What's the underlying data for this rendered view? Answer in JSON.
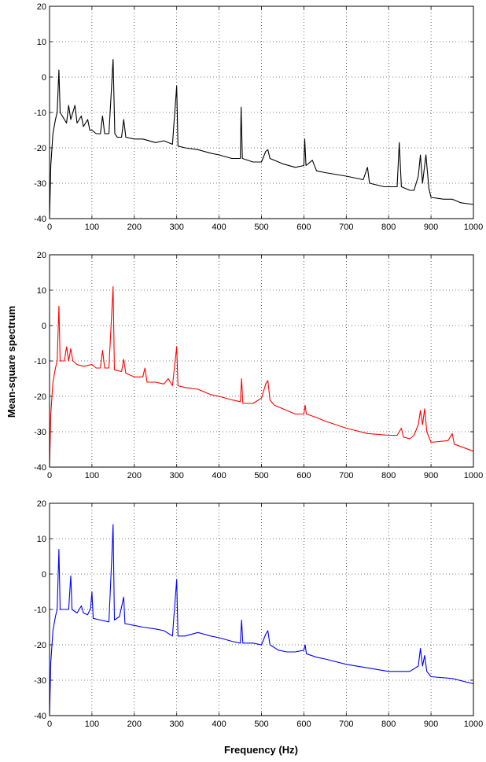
{
  "figure": {
    "xlabel": "Frequency (Hz)",
    "ylabel": "Mean-square spectrum"
  },
  "chart_data": [
    {
      "type": "line",
      "xlim": [
        0,
        1000
      ],
      "ylim": [
        -40,
        20
      ],
      "xticks": [
        "0",
        "100",
        "200",
        "300",
        "400",
        "500",
        "600",
        "700",
        "800",
        "900",
        "1000"
      ],
      "yticks": [
        "-40",
        "-30",
        "-20",
        "-10",
        "0",
        "10",
        "20"
      ],
      "grid": true,
      "series": [
        {
          "color": "#000000",
          "points": [
            [
              0,
              -40
            ],
            [
              3,
              -25
            ],
            [
              8,
              -16
            ],
            [
              14,
              -12
            ],
            [
              18,
              -10
            ],
            [
              22,
              2
            ],
            [
              25,
              -10
            ],
            [
              30,
              -11
            ],
            [
              40,
              -13
            ],
            [
              45,
              -8
            ],
            [
              50,
              -12
            ],
            [
              60,
              -8
            ],
            [
              65,
              -13
            ],
            [
              75,
              -11
            ],
            [
              80,
              -14
            ],
            [
              90,
              -12
            ],
            [
              95,
              -15
            ],
            [
              100,
              -15
            ],
            [
              110,
              -16
            ],
            [
              120,
              -16
            ],
            [
              125,
              -11
            ],
            [
              130,
              -16
            ],
            [
              140,
              -16
            ],
            [
              150,
              5
            ],
            [
              154,
              -16
            ],
            [
              160,
              -17
            ],
            [
              170,
              -17
            ],
            [
              175,
              -12
            ],
            [
              180,
              -17
            ],
            [
              200,
              -17.5
            ],
            [
              220,
              -17.5
            ],
            [
              250,
              -18.5
            ],
            [
              270,
              -18
            ],
            [
              290,
              -19
            ],
            [
              300,
              -2.5
            ],
            [
              303,
              -19.5
            ],
            [
              320,
              -20
            ],
            [
              350,
              -20.5
            ],
            [
              380,
              -21.5
            ],
            [
              400,
              -22
            ],
            [
              430,
              -23
            ],
            [
              450,
              -23
            ],
            [
              452,
              -8.5
            ],
            [
              455,
              -23
            ],
            [
              480,
              -24
            ],
            [
              500,
              -24
            ],
            [
              510,
              -21
            ],
            [
              515,
              -20.5
            ],
            [
              520,
              -23
            ],
            [
              550,
              -24.5
            ],
            [
              580,
              -25.5
            ],
            [
              600,
              -25
            ],
            [
              602,
              -17.5
            ],
            [
              605,
              -25
            ],
            [
              620,
              -23.5
            ],
            [
              630,
              -26.5
            ],
            [
              650,
              -27
            ],
            [
              700,
              -28
            ],
            [
              740,
              -29
            ],
            [
              750,
              -25.5
            ],
            [
              755,
              -30
            ],
            [
              790,
              -31
            ],
            [
              820,
              -31
            ],
            [
              825,
              -18.5
            ],
            [
              830,
              -31
            ],
            [
              850,
              -32
            ],
            [
              860,
              -32
            ],
            [
              870,
              -28
            ],
            [
              875,
              -22
            ],
            [
              880,
              -30
            ],
            [
              888,
              -22
            ],
            [
              895,
              -31.5
            ],
            [
              900,
              -34
            ],
            [
              930,
              -34.5
            ],
            [
              950,
              -34.5
            ],
            [
              970,
              -35.5
            ],
            [
              1000,
              -36
            ]
          ]
        },
        {
          "color": "#ff0000",
          "points": [
            [
              0,
              -40
            ],
            [
              3,
              -25
            ],
            [
              8,
              -16
            ],
            [
              14,
              -12
            ],
            [
              18,
              -10
            ],
            [
              22,
              5.5
            ],
            [
              25,
              -10
            ],
            [
              35,
              -10
            ],
            [
              40,
              -6
            ],
            [
              45,
              -10
            ],
            [
              50,
              -6.5
            ],
            [
              55,
              -10
            ],
            [
              65,
              -11
            ],
            [
              80,
              -11.5
            ],
            [
              100,
              -11
            ],
            [
              110,
              -12
            ],
            [
              120,
              -12
            ],
            [
              125,
              -7
            ],
            [
              130,
              -12
            ],
            [
              140,
              -12
            ],
            [
              150,
              11
            ],
            [
              153,
              -12.5
            ],
            [
              170,
              -13
            ],
            [
              175,
              -9.5
            ],
            [
              180,
              -13.5
            ],
            [
              200,
              -14.5
            ],
            [
              220,
              -14.5
            ],
            [
              225,
              -12
            ],
            [
              230,
              -16
            ],
            [
              250,
              -16
            ],
            [
              270,
              -16.5
            ],
            [
              280,
              -15
            ],
            [
              290,
              -17
            ],
            [
              300,
              -6
            ],
            [
              303,
              -17
            ],
            [
              320,
              -17.5
            ],
            [
              350,
              -18
            ],
            [
              380,
              -19.5
            ],
            [
              400,
              -20
            ],
            [
              430,
              -21
            ],
            [
              450,
              -21.5
            ],
            [
              453,
              -15
            ],
            [
              456,
              -22
            ],
            [
              480,
              -22
            ],
            [
              500,
              -20.5
            ],
            [
              510,
              -16.5
            ],
            [
              515,
              -15.5
            ],
            [
              520,
              -21
            ],
            [
              530,
              -22.5
            ],
            [
              550,
              -23.5
            ],
            [
              580,
              -25
            ],
            [
              600,
              -25
            ],
            [
              603,
              -22.5
            ],
            [
              606,
              -25
            ],
            [
              630,
              -26
            ],
            [
              650,
              -27
            ],
            [
              700,
              -29
            ],
            [
              750,
              -30.5
            ],
            [
              800,
              -31
            ],
            [
              820,
              -31
            ],
            [
              830,
              -29
            ],
            [
              835,
              -31.5
            ],
            [
              850,
              -32
            ],
            [
              860,
              -31
            ],
            [
              870,
              -28
            ],
            [
              875,
              -24
            ],
            [
              880,
              -28
            ],
            [
              885,
              -23.5
            ],
            [
              890,
              -30
            ],
            [
              900,
              -33
            ],
            [
              940,
              -32.5
            ],
            [
              950,
              -30.5
            ],
            [
              955,
              -33.5
            ],
            [
              1000,
              -35.5
            ]
          ]
        },
        {
          "color": "#0000ff",
          "points": [
            [
              0,
              -40
            ],
            [
              3,
              -25
            ],
            [
              8,
              -16
            ],
            [
              14,
              -12
            ],
            [
              18,
              -10
            ],
            [
              22,
              7
            ],
            [
              25,
              -10
            ],
            [
              35,
              -10
            ],
            [
              45,
              -10
            ],
            [
              50,
              -0.5
            ],
            [
              53,
              -10
            ],
            [
              65,
              -11
            ],
            [
              75,
              -9
            ],
            [
              80,
              -11
            ],
            [
              90,
              -11.5
            ],
            [
              97,
              -9.5
            ],
            [
              100,
              -5
            ],
            [
              103,
              -12.5
            ],
            [
              120,
              -13
            ],
            [
              140,
              -13.5
            ],
            [
              147,
              5
            ],
            [
              150,
              14
            ],
            [
              153,
              -13
            ],
            [
              165,
              -12
            ],
            [
              175,
              -6.5
            ],
            [
              178,
              -14
            ],
            [
              200,
              -14.5
            ],
            [
              220,
              -15
            ],
            [
              250,
              -15.5
            ],
            [
              270,
              -16
            ],
            [
              290,
              -17.5
            ],
            [
              300,
              -1.5
            ],
            [
              303,
              -17.5
            ],
            [
              320,
              -17.5
            ],
            [
              350,
              -16.5
            ],
            [
              380,
              -17.5
            ],
            [
              400,
              -18
            ],
            [
              430,
              -19
            ],
            [
              450,
              -19.5
            ],
            [
              453,
              -13
            ],
            [
              456,
              -19.5
            ],
            [
              480,
              -19.5
            ],
            [
              500,
              -20
            ],
            [
              510,
              -17
            ],
            [
              515,
              -16
            ],
            [
              520,
              -20
            ],
            [
              540,
              -21.5
            ],
            [
              560,
              -22
            ],
            [
              580,
              -22
            ],
            [
              600,
              -21.5
            ],
            [
              603,
              -20
            ],
            [
              606,
              -22.5
            ],
            [
              630,
              -23.5
            ],
            [
              650,
              -24
            ],
            [
              700,
              -25.5
            ],
            [
              750,
              -26.5
            ],
            [
              800,
              -27.5
            ],
            [
              850,
              -27.5
            ],
            [
              870,
              -26
            ],
            [
              875,
              -21
            ],
            [
              880,
              -26
            ],
            [
              885,
              -23
            ],
            [
              890,
              -27.5
            ],
            [
              900,
              -29
            ],
            [
              950,
              -29.5
            ],
            [
              1000,
              -31
            ]
          ]
        }
      ]
    }
  ]
}
